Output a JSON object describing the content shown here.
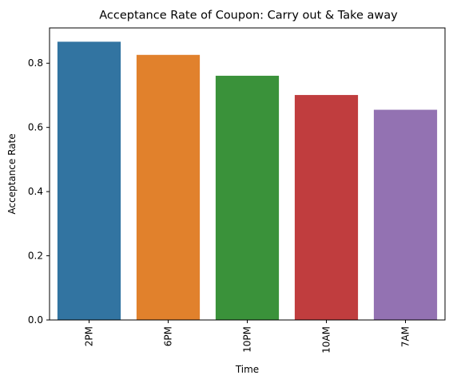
{
  "chart_data": {
    "type": "bar",
    "title": "Acceptance Rate of Coupon: Carry out & Take away",
    "xlabel": "Time",
    "ylabel": "Acceptance Rate",
    "categories": [
      "2PM",
      "6PM",
      "10PM",
      "10AM",
      "7AM"
    ],
    "values": [
      0.867,
      0.826,
      0.761,
      0.701,
      0.655
    ],
    "colors": [
      "#3274a1",
      "#e1812c",
      "#3a923a",
      "#c03d3e",
      "#9372b2"
    ],
    "ylim": [
      0,
      0.91
    ],
    "yticks": [
      0.0,
      0.2,
      0.4,
      0.6,
      0.8
    ],
    "ytick_labels": [
      "0.0",
      "0.2",
      "0.4",
      "0.6",
      "0.8"
    ],
    "grid": false,
    "legend": "none"
  }
}
